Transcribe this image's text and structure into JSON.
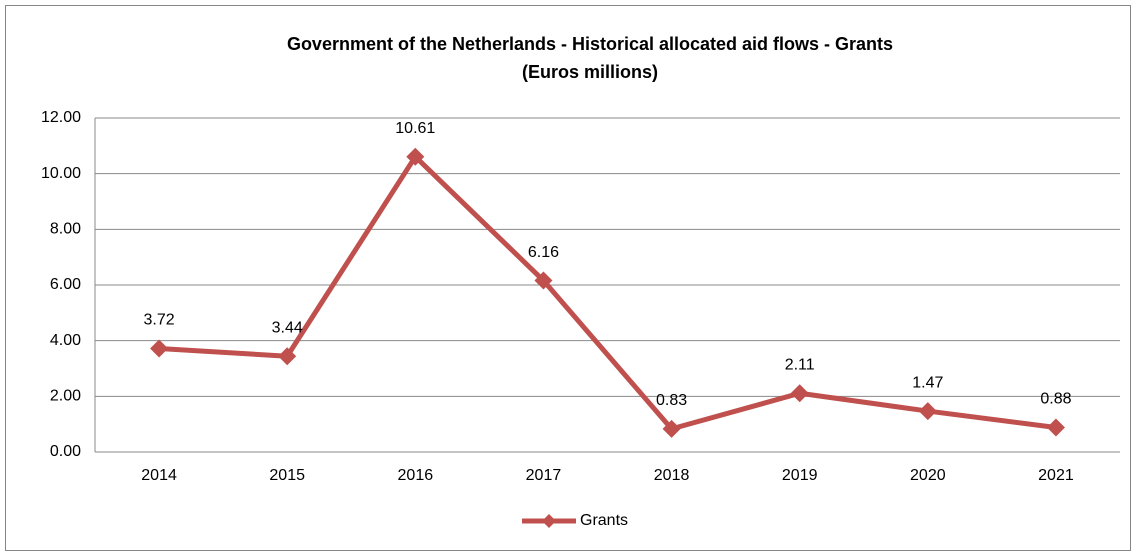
{
  "chart_data": {
    "type": "line",
    "title": [
      "Government of the Netherlands - Historical allocated aid flows - Grants",
      "(Euros millions)"
    ],
    "categories": [
      "2014",
      "2015",
      "2016",
      "2017",
      "2018",
      "2019",
      "2020",
      "2021"
    ],
    "series": [
      {
        "name": "Grants",
        "color": "#c0504d",
        "values": [
          3.72,
          3.44,
          10.61,
          6.16,
          0.83,
          2.11,
          1.47,
          0.88
        ]
      }
    ],
    "ylim": [
      0,
      12
    ],
    "yticks": [
      {
        "value": 0,
        "label": "0.00"
      },
      {
        "value": 2,
        "label": "2.00"
      },
      {
        "value": 4,
        "label": "4.00"
      },
      {
        "value": 6,
        "label": "6.00"
      },
      {
        "value": 8,
        "label": "8.00"
      },
      {
        "value": 10,
        "label": "10.00"
      },
      {
        "value": 12,
        "label": "12.00"
      }
    ],
    "grid": true,
    "legend": "bottom"
  }
}
